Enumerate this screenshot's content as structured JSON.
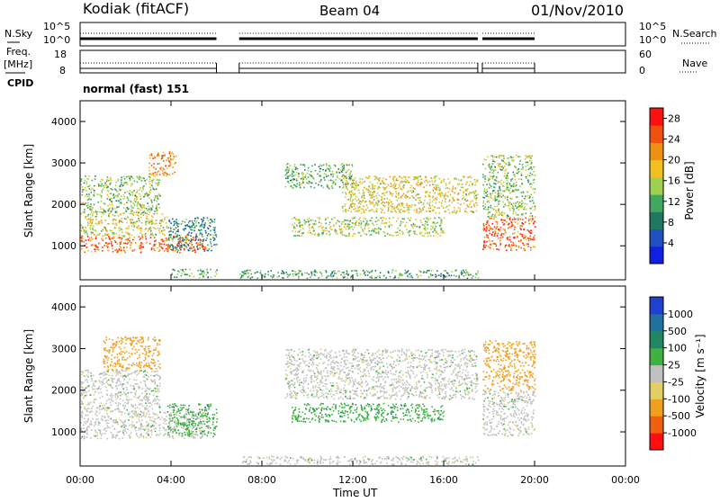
{
  "header": {
    "station": "Kodiak (fitACF)",
    "beam": "Beam 04",
    "date": "01/Nov/2010"
  },
  "side_labels": {
    "nsky": "N.Sky",
    "freq_line1": "Freq.",
    "freq_line2": "[MHz]",
    "cpid": "CPID",
    "nsearch": "N.Search",
    "nave": "Nave",
    "cpid_value": "normal (fast) 151"
  },
  "noise_axis": {
    "left_ticks": [
      "10^5",
      "10^0"
    ],
    "right_ticks": [
      "10^5",
      "10^0"
    ]
  },
  "freq_axis": {
    "left_ticks": [
      "18",
      "8"
    ],
    "right_ticks": [
      "60",
      "0"
    ]
  },
  "colors": {
    "power_scale": [
      "#1020e0",
      "#2050c0",
      "#207860",
      "#40a860",
      "#a0d050",
      "#f0c020",
      "#f09010",
      "#f05010",
      "#ff1010"
    ],
    "velocity_scale": [
      "#2040d0",
      "#2070a0",
      "#208860",
      "#40b040",
      "#c0c0c0",
      "#e0d060",
      "#f0a020",
      "#f06010",
      "#ff1010"
    ]
  },
  "chart_data": [
    {
      "type": "heatmap",
      "title": "",
      "ylabel": "Slant Range [km]",
      "xlabel": "",
      "ylim": [
        180,
        4500
      ],
      "yticks": [
        "1000",
        "2000",
        "3000",
        "4000"
      ],
      "colorbar_label": "Power [dB]",
      "colorbar_ticks": [
        "4",
        "8",
        "12",
        "16",
        "20",
        "24",
        "28"
      ],
      "colorbar_range": [
        0,
        30
      ],
      "scatter_bands": [
        {
          "t0": 0.0,
          "t1": 5.5,
          "r0": 850,
          "r1": 1250,
          "v": 24
        },
        {
          "t0": 0.0,
          "t1": 3.8,
          "r0": 1250,
          "r1": 1800,
          "v": 17
        },
        {
          "t0": 0.0,
          "t1": 3.5,
          "r0": 1800,
          "r1": 2700,
          "v": 14
        },
        {
          "t0": 3.0,
          "t1": 4.2,
          "r0": 2700,
          "r1": 3300,
          "v": 22
        },
        {
          "t0": 3.8,
          "t1": 6.0,
          "r0": 900,
          "r1": 1700,
          "v": 9
        },
        {
          "t0": 4.0,
          "t1": 6.0,
          "r0": 250,
          "r1": 450,
          "v": 12
        },
        {
          "t0": 7.0,
          "t1": 17.5,
          "r0": 230,
          "r1": 430,
          "v": 11
        },
        {
          "t0": 9.0,
          "t1": 12.0,
          "r0": 2400,
          "r1": 3000,
          "v": 12
        },
        {
          "t0": 11.5,
          "t1": 17.5,
          "r0": 1800,
          "r1": 2700,
          "v": 18
        },
        {
          "t0": 9.3,
          "t1": 16.0,
          "r0": 1250,
          "r1": 1700,
          "v": 15
        },
        {
          "t0": 17.7,
          "t1": 20.0,
          "r0": 900,
          "r1": 1700,
          "v": 24
        },
        {
          "t0": 17.7,
          "t1": 20.0,
          "r0": 1700,
          "r1": 3200,
          "v": 14
        }
      ]
    },
    {
      "type": "heatmap",
      "title": "",
      "ylabel": "Slant Range [km]",
      "xlabel": "Time UT",
      "ylim": [
        180,
        4500
      ],
      "yticks": [
        "1000",
        "2000",
        "3000",
        "4000"
      ],
      "xticks": [
        "00:00",
        "04:00",
        "08:00",
        "12:00",
        "16:00",
        "20:00",
        "00:00"
      ],
      "xlim": [
        0,
        24
      ],
      "colorbar_label": "Velocity [m s⁻¹]",
      "colorbar_ticks": [
        "1000",
        "500",
        "100",
        "25",
        "-25",
        "-100",
        "-500",
        "-1000"
      ],
      "scatter_bands": [
        {
          "t0": 0.0,
          "t1": 5.5,
          "r0": 850,
          "r1": 1500,
          "v": 0
        },
        {
          "t0": 0.0,
          "t1": 3.5,
          "r0": 1500,
          "r1": 2500,
          "v": 0
        },
        {
          "t0": 1.0,
          "t1": 3.5,
          "r0": 2500,
          "r1": 3300,
          "v": -150
        },
        {
          "t0": 3.8,
          "t1": 6.0,
          "r0": 900,
          "r1": 1700,
          "v": 80
        },
        {
          "t0": 7.0,
          "t1": 17.5,
          "r0": 230,
          "r1": 430,
          "v": 0
        },
        {
          "t0": 9.0,
          "t1": 17.5,
          "r0": 1800,
          "r1": 3000,
          "v": 0
        },
        {
          "t0": 9.3,
          "t1": 16.0,
          "r0": 1250,
          "r1": 1700,
          "v": 80
        },
        {
          "t0": 17.7,
          "t1": 20.0,
          "r0": 900,
          "r1": 2000,
          "v": 0
        },
        {
          "t0": 17.7,
          "t1": 20.0,
          "r0": 2000,
          "r1": 3200,
          "v": -200
        }
      ]
    }
  ]
}
